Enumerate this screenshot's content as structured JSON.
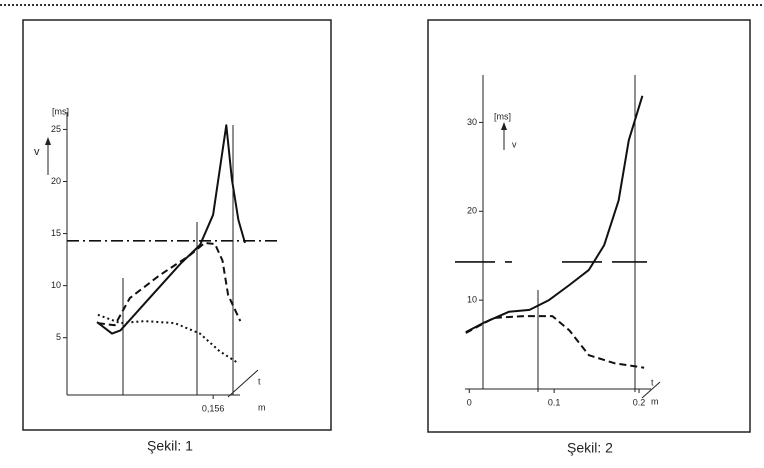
{
  "chart_data": [
    {
      "type": "line",
      "caption": "Şekil: 1",
      "y_label": "v",
      "y_unit": "[ms]",
      "x_label": "t",
      "x_unit": "m",
      "xlim": [
        0,
        0.19
      ],
      "ylim": [
        -0.5,
        26
      ],
      "xticks": [
        {
          "value": 0.156,
          "label": "0,156"
        }
      ],
      "yticks": [
        5,
        10,
        15,
        20,
        25
      ],
      "ref_lines": [
        {
          "value": 14.3,
          "style": "dashdot"
        }
      ],
      "series": [
        {
          "style": "solid",
          "color": "#111",
          "x": [
            0.032,
            0.048,
            0.057,
            0.089,
            0.121,
            0.142,
            0.156,
            0.163,
            0.17,
            0.176,
            0.183,
            0.19
          ],
          "values": [
            6.5,
            5.4,
            5.7,
            8.9,
            12.1,
            13.9,
            16.8,
            21.1,
            25.4,
            20.2,
            16.3,
            14.1
          ]
        },
        {
          "style": "dashed",
          "color": "#111",
          "x": [
            0.033,
            0.051,
            0.067,
            0.099,
            0.131,
            0.147,
            0.158,
            0.166,
            0.172,
            0.185
          ],
          "values": [
            6.4,
            6.2,
            8.8,
            11.0,
            12.9,
            14.1,
            14.0,
            12.4,
            9.1,
            6.6
          ]
        },
        {
          "style": "dotted",
          "color": "#111",
          "x": [
            0.033,
            0.057,
            0.083,
            0.115,
            0.142,
            0.163,
            0.182
          ],
          "values": [
            7.2,
            6.4,
            6.6,
            6.4,
            5.4,
            3.7,
            2.6
          ]
        }
      ]
    },
    {
      "type": "line",
      "caption": "Şekil: 2",
      "y_label": "v",
      "y_unit": "[ms]",
      "x_label": "t",
      "x_unit": "m",
      "xlim": [
        -0.005,
        0.22
      ],
      "ylim": [
        0,
        35
      ],
      "xticks": [
        0,
        0.1,
        0.2
      ],
      "yticks": [
        10,
        20,
        30
      ],
      "ref_lines": [
        {
          "value": 14.3,
          "style": "longdash"
        }
      ],
      "series": [
        {
          "style": "solid",
          "color": "#111",
          "x": [
            -0.004,
            0.018,
            0.047,
            0.071,
            0.094,
            0.118,
            0.141,
            0.159,
            0.176,
            0.188,
            0.204
          ],
          "values": [
            6.4,
            7.5,
            8.7,
            8.9,
            10.0,
            11.7,
            13.4,
            16.2,
            21.2,
            28.0,
            33.0
          ]
        },
        {
          "style": "dashed",
          "color": "#111",
          "x": [
            -0.004,
            0.029,
            0.065,
            0.098,
            0.118,
            0.141,
            0.171,
            0.206
          ],
          "values": [
            6.3,
            8.0,
            8.2,
            8.2,
            6.6,
            3.8,
            2.9,
            2.4
          ]
        }
      ]
    }
  ]
}
